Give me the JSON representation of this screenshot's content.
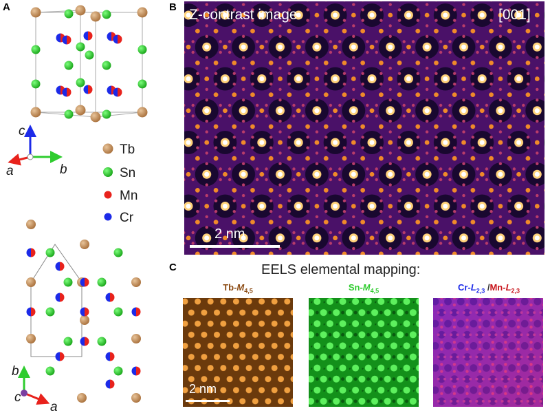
{
  "panels": {
    "a": "A",
    "b": "B",
    "c": "C"
  },
  "structure": {
    "legend": [
      {
        "name": "Tb",
        "color": "#c18a55"
      },
      {
        "name": "Sn",
        "color": "#2ecc2e"
      },
      {
        "name": "Mn",
        "color": "#e8221c"
      },
      {
        "name": "Cr",
        "color": "#1c2ae8"
      }
    ],
    "axes_top": {
      "c": "c",
      "a": "a",
      "b": "b"
    },
    "axes_bottom": {
      "b": "b",
      "c": "c",
      "a": "a"
    }
  },
  "stem": {
    "title": "Z-contrast image",
    "zone_axis": "[001]",
    "scale_bar": "2 nm"
  },
  "eels": {
    "title": "EELS elemental mapping:",
    "tb": {
      "element": "Tb-",
      "edge": "M",
      "sub": "4,5",
      "color": "#8b4a12"
    },
    "sn": {
      "element": "Sn-",
      "edge": "M",
      "sub": "4,5",
      "color": "#2ecc2e"
    },
    "cr": {
      "element": "Cr-",
      "edge": "L",
      "sub": "2,3",
      "color": "#1c2ae8"
    },
    "separator": "/",
    "mn": {
      "element": "Mn-",
      "edge": "L",
      "sub": "2,3",
      "color": "#c8141b"
    },
    "scale_bar": "2 nm"
  }
}
